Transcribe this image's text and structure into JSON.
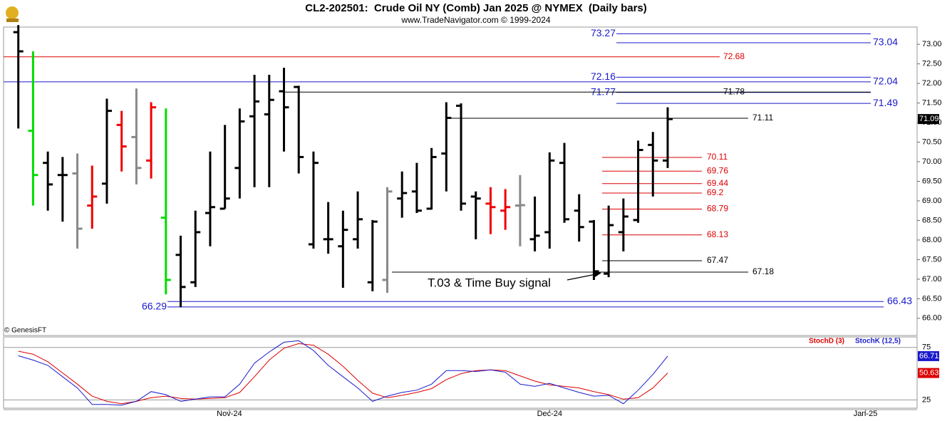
{
  "chart_data": [
    {
      "type": "ohlc",
      "title": "CL2-202501:  Crude Oil NY (Comb) Jan 2025 @ NYMEX  (Daily bars)",
      "subtitle": "www.TradeNavigator.com © 1999-2024",
      "watermark": "© GenesisFT",
      "annotation": "T.03 & Time Buy signal",
      "categories": [
        null,
        null,
        null,
        null,
        null,
        null,
        null,
        null,
        null,
        null,
        null,
        null,
        null,
        null,
        null,
        null,
        null,
        null,
        null,
        null,
        null,
        null,
        null,
        null,
        null,
        null,
        null,
        null,
        null,
        null,
        null,
        null,
        null,
        null,
        null,
        null,
        null,
        null,
        null,
        null,
        null,
        null,
        null,
        null,
        null
      ],
      "open": [
        73.31,
        70.79,
        69.97,
        69.66,
        69.7,
        68.88,
        69.44,
        70.94,
        70.63,
        70.03,
        68.57,
        67.62,
        66.92,
        68.69,
        68.8,
        69.84,
        71.16,
        71.21,
        71.8,
        71.91,
        67.89,
        68.02,
        67.84,
        68.02,
        66.92,
        66.98,
        69.06,
        69.24,
        68.8,
        70.21,
        71.43,
        69.11,
        68.93,
        68.75,
        68.88,
        68.02,
        68.2,
        69.97,
        68.75,
        68.47,
        67.14,
        68.2,
        68.51,
        70.43,
        70.03
      ],
      "high": [
        73.49,
        72.82,
        70.26,
        70.12,
        70.21,
        69.9,
        71.61,
        71.3,
        71.87,
        71.52,
        71.36,
        68.11,
        68.75,
        70.26,
        70.94,
        71.36,
        72.22,
        72.22,
        72.4,
        71.94,
        70.26,
        68.97,
        68.75,
        69.24,
        68.51,
        69.35,
        69.75,
        69.97,
        70.35,
        71.52,
        71.49,
        69.24,
        69.35,
        69.3,
        69.66,
        69.11,
        70.24,
        70.48,
        69.17,
        68.51,
        68.88,
        69.06,
        70.54,
        70.76,
        71.39
      ],
      "low": [
        70.85,
        68.88,
        68.75,
        68.47,
        67.78,
        68.29,
        68.93,
        69.75,
        69.42,
        69.57,
        66.61,
        66.28,
        66.8,
        67.84,
        68.8,
        69.06,
        69.35,
        69.35,
        70.26,
        69.7,
        67.78,
        67.65,
        66.78,
        67.78,
        66.69,
        66.65,
        68.57,
        68.69,
        68.78,
        69.24,
        68.75,
        68.02,
        68.15,
        68.26,
        67.84,
        67.71,
        67.78,
        68.44,
        67.96,
        66.98,
        67.05,
        67.71,
        68.44,
        69.11,
        69.84
      ],
      "close": [
        72.82,
        69.66,
        69.42,
        69.66,
        68.29,
        69.11,
        71.3,
        70.39,
        69.84,
        71.39,
        66.98,
        66.8,
        68.2,
        68.84,
        69.06,
        71.03,
        71.54,
        71.58,
        71.39,
        70.12,
        69.97,
        68.02,
        68.26,
        68.53,
        68.47,
        69.24,
        69.2,
        68.75,
        70.12,
        71.12,
        68.93,
        69.06,
        68.84,
        68.84,
        68.89,
        68.11,
        70.03,
        68.53,
        68.33,
        67.2,
        68.38,
        68.6,
        70.3,
        70.03,
        71.09
      ],
      "bar_colors": [
        "#000000",
        "#00dd00",
        "#000000",
        "#000000",
        "#888888",
        "#ee0000",
        "#000000",
        "#ee0000",
        "#888888",
        "#ee0000",
        "#00dd00",
        "#000000",
        "#000000",
        "#000000",
        "#000000",
        "#000000",
        "#000000",
        "#000000",
        "#000000",
        "#000000",
        "#000000",
        "#000000",
        "#000000",
        "#000000",
        "#000000",
        "#888888",
        "#000000",
        "#000000",
        "#000000",
        "#000000",
        "#000000",
        "#000000",
        "#ee0000",
        "#ee0000",
        "#888888",
        "#000000",
        "#000000",
        "#000000",
        "#000000",
        "#000000",
        "#000000",
        "#000000",
        "#000000",
        "#000000",
        "#000000"
      ],
      "levels": [
        {
          "value": 73.27,
          "color": "#1a1acc"
        },
        {
          "value": 73.04,
          "color": "#1a1acc"
        },
        {
          "value": 72.68,
          "color": "#dd0000"
        },
        {
          "value": 72.16,
          "color": "#1a1acc"
        },
        {
          "value": 72.04,
          "color": "#1a1acc"
        },
        {
          "value": 71.77,
          "color": "#1a1acc"
        },
        {
          "value": 71.78,
          "color": "#000000"
        },
        {
          "value": 71.49,
          "color": "#1a1acc"
        },
        {
          "value": 71.11,
          "color": "#000000"
        },
        {
          "value": 70.11,
          "color": "#dd0000"
        },
        {
          "value": 69.76,
          "color": "#dd0000"
        },
        {
          "value": 69.44,
          "color": "#dd0000"
        },
        {
          "value": 69.2,
          "color": "#dd0000"
        },
        {
          "value": 68.79,
          "color": "#dd0000"
        },
        {
          "value": 68.13,
          "color": "#dd0000"
        },
        {
          "value": 67.47,
          "color": "#000000"
        },
        {
          "value": 67.18,
          "color": "#000000"
        },
        {
          "value": 66.43,
          "color": "#1a1acc"
        },
        {
          "value": 66.29,
          "color": "#1a1acc"
        }
      ],
      "ylim": [
        65.56,
        73.44
      ],
      "yticks": [
        {
          "value": 73,
          "label": "73.00"
        },
        {
          "value": 72.5,
          "label": "72.50"
        },
        {
          "value": 72,
          "label": "72.00"
        },
        {
          "value": 71.5,
          "label": "71.50"
        },
        {
          "value": 71,
          "label": "71.00"
        },
        {
          "value": 70.5,
          "label": "70.50"
        },
        {
          "value": 70,
          "label": "70.00"
        },
        {
          "value": 69.5,
          "label": "69.50"
        },
        {
          "value": 69,
          "label": "69.00"
        },
        {
          "value": 68.5,
          "label": "68.50"
        },
        {
          "value": 68,
          "label": "68.00"
        },
        {
          "value": 67.5,
          "label": "67.50"
        },
        {
          "value": 67,
          "label": "67.00"
        },
        {
          "value": 66.5,
          "label": "66.50"
        },
        {
          "value": 66,
          "label": "66.00"
        }
      ],
      "xlim": [
        -1,
        60.9
      ]
    },
    {
      "type": "line",
      "categories": [
        null,
        null,
        null,
        null,
        null,
        null,
        null,
        null,
        null,
        null,
        null,
        null,
        null,
        null,
        null,
        null,
        null,
        null,
        null,
        null,
        null,
        null,
        null,
        null,
        null,
        null,
        null,
        null,
        null,
        null,
        null,
        null,
        null,
        null,
        null,
        null,
        null,
        null,
        null,
        null,
        null,
        null,
        null,
        null,
        null
      ],
      "series": [
        {
          "name": "StochD (3)",
          "color": "#dd0000",
          "values": [
            71.4,
            68.6,
            61.4,
            50.7,
            40,
            28.6,
            23.6,
            21.4,
            23.6,
            27.1,
            28.6,
            26.4,
            25.7,
            26.4,
            27.1,
            32.1,
            47.1,
            62.9,
            74.3,
            78.6,
            77.1,
            68.6,
            57.1,
            43.6,
            31.4,
            27.1,
            29.3,
            32.1,
            35.7,
            44.3,
            50,
            52.9,
            53.6,
            52.9,
            47.9,
            42.9,
            39.3,
            37.9,
            36.4,
            32.9,
            30,
            25.7,
            27.1,
            36.4,
            50.63
          ]
        },
        {
          "name": "StochK (12,5)",
          "color": "#1a1acc",
          "values": [
            67.1,
            62.9,
            57.9,
            47.1,
            36.4,
            20.7,
            20.7,
            20,
            23.6,
            32.9,
            30,
            23.6,
            25.7,
            27.9,
            27.9,
            40,
            60,
            70.7,
            80,
            81.4,
            72.1,
            57.9,
            47.1,
            36.4,
            23.6,
            28.6,
            32.1,
            34.3,
            40,
            52.9,
            52.9,
            52.1,
            53.6,
            51.4,
            40,
            37.9,
            40.7,
            36.4,
            32.1,
            28.6,
            29.3,
            21.4,
            34.3,
            49.3,
            66.71
          ]
        }
      ],
      "ylim": [
        17.1,
        85
      ],
      "yticks": [
        25,
        75
      ],
      "xlim": [
        -1,
        60.9
      ],
      "xticks": [
        {
          "value": 14.3,
          "label": "Nov-24"
        },
        {
          "value": 36,
          "label": "Dec-24"
        },
        {
          "value": 57.4,
          "label": "Jan-25"
        }
      ]
    }
  ]
}
